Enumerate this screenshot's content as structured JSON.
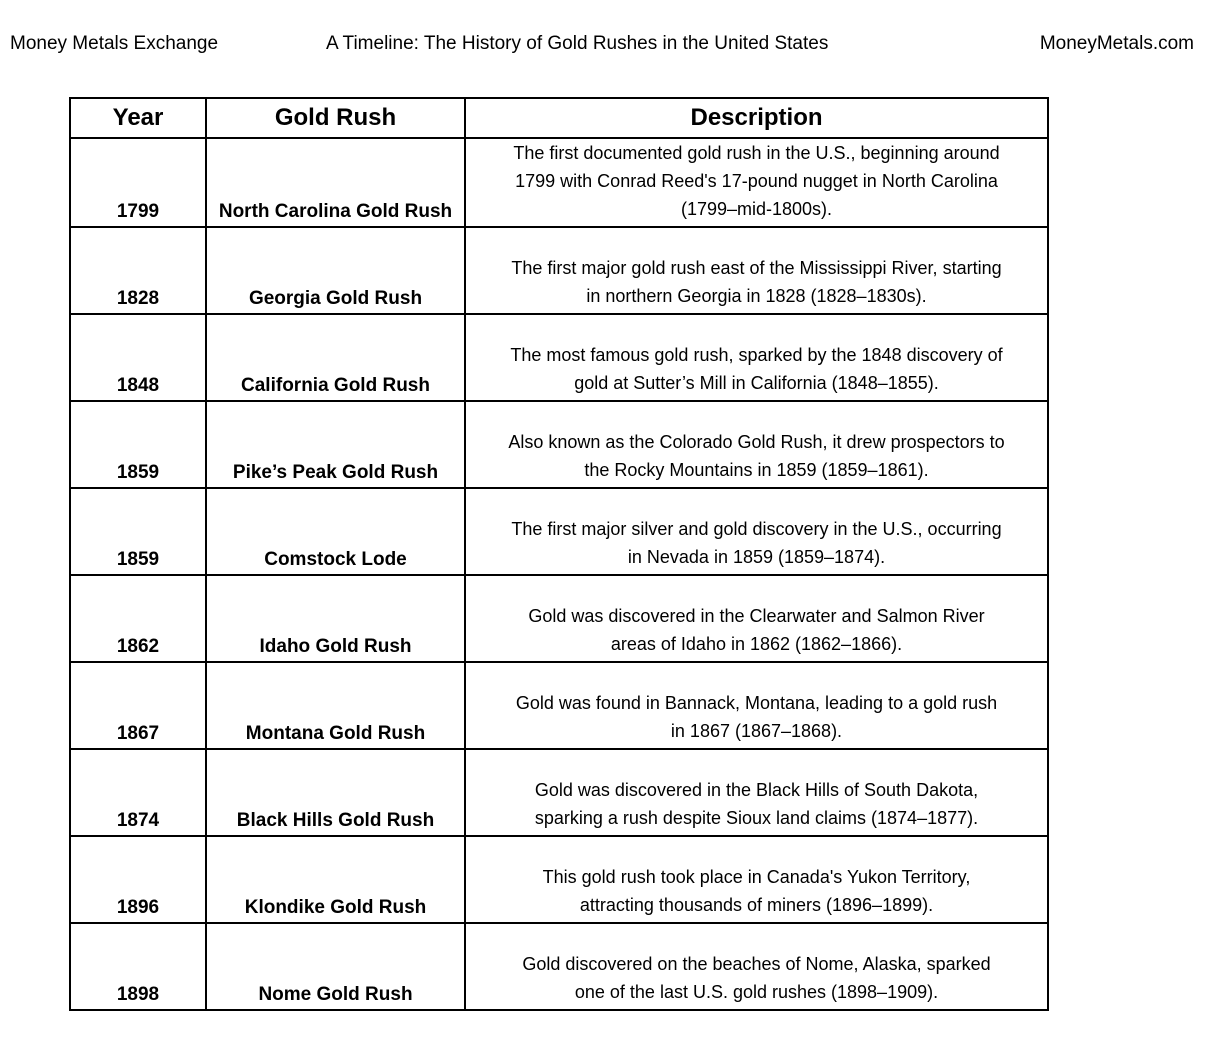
{
  "header": {
    "left": "Money Metals Exchange",
    "title": "A Timeline: The History of Gold Rushes in the United States",
    "right": "MoneyMetals.com"
  },
  "table": {
    "columns": [
      "Year",
      "Gold Rush",
      "Description"
    ],
    "rows": [
      {
        "year": "1799",
        "name": "North Carolina Gold Rush",
        "lines": [
          "The first documented gold rush in the U.S., beginning around",
          "1799 with Conrad Reed's 17-pound nugget in North Carolina",
          "(1799–mid-1800s)."
        ]
      },
      {
        "year": "1828",
        "name": "Georgia Gold Rush",
        "lines": [
          "The first major gold rush east of the Mississippi River, starting",
          "in northern Georgia in 1828 (1828–1830s)."
        ]
      },
      {
        "year": "1848",
        "name": "California Gold Rush",
        "lines": [
          "The most famous gold rush, sparked by the 1848 discovery of",
          "gold at Sutter’s Mill in California (1848–1855)."
        ]
      },
      {
        "year": "1859",
        "name": "Pike’s Peak Gold Rush",
        "lines": [
          "Also known as the Colorado Gold Rush, it drew prospectors to",
          "the Rocky Mountains in 1859 (1859–1861)."
        ]
      },
      {
        "year": "1859",
        "name": "Comstock Lode",
        "lines": [
          "The first major silver and gold discovery in the U.S., occurring",
          "in Nevada in 1859 (1859–1874)."
        ]
      },
      {
        "year": "1862",
        "name": "Idaho Gold Rush",
        "lines": [
          "Gold was discovered in the Clearwater and Salmon River",
          "areas of Idaho in 1862 (1862–1866)."
        ]
      },
      {
        "year": "1867",
        "name": "Montana Gold Rush",
        "lines": [
          "Gold was found in Bannack, Montana, leading to a gold rush",
          "in 1867 (1867–1868)."
        ]
      },
      {
        "year": "1874",
        "name": "Black Hills Gold Rush",
        "lines": [
          "Gold was discovered in the Black Hills of South Dakota,",
          "sparking a rush despite Sioux land claims (1874–1877)."
        ]
      },
      {
        "year": "1896",
        "name": "Klondike Gold Rush",
        "lines": [
          "This gold rush took place in Canada's Yukon Territory,",
          "attracting thousands of miners (1896–1899)."
        ]
      },
      {
        "year": "1898",
        "name": "Nome Gold Rush",
        "lines": [
          "Gold discovered on the beaches of Nome, Alaska, sparked",
          "one of the last U.S. gold rushes (1898–1909)."
        ]
      }
    ]
  }
}
